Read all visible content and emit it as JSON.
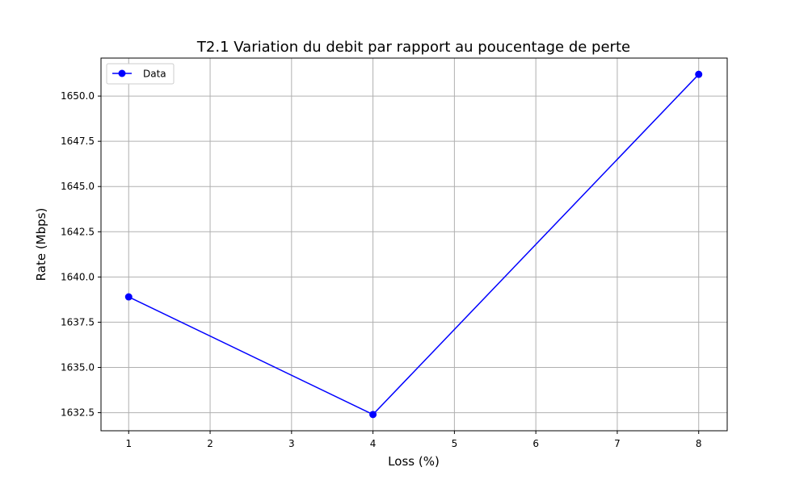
{
  "chart_data": {
    "type": "line",
    "title": "T2.1 Variation du debit par rapport au poucentage de perte",
    "xlabel": "Loss (%)",
    "ylabel": "Rate (Mbps)",
    "x": [
      1,
      4,
      8
    ],
    "series": [
      {
        "name": "Data",
        "values": [
          1638.9,
          1632.4,
          1651.2
        ],
        "color": "#0000ff",
        "marker": "circle"
      }
    ],
    "xlim": [
      0.66,
      8.35
    ],
    "ylim": [
      1631.5,
      1652.1
    ],
    "xticks": [
      1,
      2,
      3,
      4,
      5,
      6,
      7,
      8
    ],
    "xtick_labels": [
      "1",
      "2",
      "3",
      "4",
      "5",
      "6",
      "7",
      "8"
    ],
    "yticks": [
      1632.5,
      1635.0,
      1637.5,
      1640.0,
      1642.5,
      1645.0,
      1647.5,
      1650.0
    ],
    "ytick_labels": [
      "1632.5",
      "1635.0",
      "1637.5",
      "1640.0",
      "1642.5",
      "1645.0",
      "1647.5",
      "1650.0"
    ],
    "grid": true,
    "legend_position": "top-left"
  }
}
